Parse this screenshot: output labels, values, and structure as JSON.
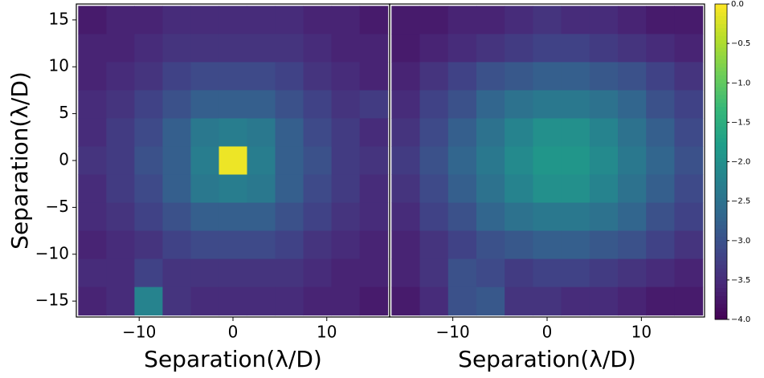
{
  "chart_data": [
    {
      "type": "heatmap",
      "xlabel": "Separation(λ/D)",
      "ylabel": "Separation(λ/D)",
      "xlim": [
        -16.7,
        16.7
      ],
      "ylim": [
        -16.7,
        16.7
      ],
      "xticks": [
        {
          "value": -10,
          "label": "−10"
        },
        0,
        10
      ],
      "yticks": [
        {
          "value": -15,
          "label": "−15"
        },
        {
          "value": -10,
          "label": "−10"
        },
        {
          "value": -5,
          "label": "−5"
        },
        0,
        5,
        10,
        15
      ],
      "x": [
        -15,
        -12,
        -9,
        -6,
        -3,
        0,
        3,
        6,
        9,
        12,
        15
      ],
      "y": [
        15,
        12,
        9,
        6,
        3,
        0,
        -3,
        -6,
        -9,
        -12,
        -15
      ],
      "values": [
        [
          -3.7,
          -3.6,
          -3.6,
          -3.5,
          -3.5,
          -3.5,
          -3.5,
          -3.5,
          -3.6,
          -3.6,
          -3.7
        ],
        [
          -3.6,
          -3.6,
          -3.5,
          -3.4,
          -3.4,
          -3.4,
          -3.4,
          -3.4,
          -3.5,
          -3.6,
          -3.6
        ],
        [
          -3.6,
          -3.5,
          -3.4,
          -3.2,
          -3.1,
          -3.1,
          -3.1,
          -3.2,
          -3.4,
          -3.5,
          -3.6
        ],
        [
          -3.5,
          -3.4,
          -3.2,
          -3.0,
          -2.8,
          -2.8,
          -2.8,
          -3.0,
          -3.2,
          -3.4,
          -3.3
        ],
        [
          -3.5,
          -3.3,
          -3.1,
          -2.8,
          -2.4,
          -2.3,
          -2.4,
          -2.8,
          -3.1,
          -3.3,
          -3.5
        ],
        [
          -3.4,
          -3.3,
          -3.0,
          -2.8,
          -2.3,
          -0.1,
          -2.3,
          -2.8,
          -3.0,
          -3.3,
          -3.4
        ],
        [
          -3.5,
          -3.3,
          -3.1,
          -2.8,
          -2.4,
          -2.3,
          -2.4,
          -2.8,
          -3.1,
          -3.3,
          -3.5
        ],
        [
          -3.5,
          -3.4,
          -3.2,
          -3.0,
          -2.8,
          -2.8,
          -2.8,
          -3.0,
          -3.2,
          -3.4,
          -3.5
        ],
        [
          -3.6,
          -3.5,
          -3.4,
          -3.2,
          -3.1,
          -3.1,
          -3.1,
          -3.2,
          -3.4,
          -3.5,
          -3.6
        ],
        [
          -3.5,
          -3.5,
          -3.2,
          -3.4,
          -3.4,
          -3.4,
          -3.4,
          -3.4,
          -3.5,
          -3.6,
          -3.6
        ],
        [
          -3.6,
          -3.5,
          -2.2,
          -3.4,
          -3.5,
          -3.5,
          -3.5,
          -3.5,
          -3.6,
          -3.6,
          -3.7
        ]
      ]
    },
    {
      "type": "heatmap",
      "xlabel": "Separation(λ/D)",
      "xlim": [
        -16.7,
        16.7
      ],
      "ylim": [
        -16.7,
        16.7
      ],
      "xticks": [
        {
          "value": -10,
          "label": "−10"
        },
        0,
        10
      ],
      "x": [
        -15,
        -12,
        -9,
        -6,
        -3,
        0,
        3,
        6,
        9,
        12,
        15
      ],
      "y": [
        15,
        12,
        9,
        6,
        3,
        0,
        -3,
        -6,
        -9,
        -12,
        -15
      ],
      "values": [
        [
          -3.7,
          -3.7,
          -3.6,
          -3.6,
          -3.5,
          -3.4,
          -3.5,
          -3.5,
          -3.6,
          -3.7,
          -3.7
        ],
        [
          -3.7,
          -3.6,
          -3.5,
          -3.4,
          -3.3,
          -3.2,
          -3.2,
          -3.3,
          -3.4,
          -3.5,
          -3.6
        ],
        [
          -3.6,
          -3.4,
          -3.2,
          -3.0,
          -2.9,
          -2.8,
          -2.8,
          -2.9,
          -3.0,
          -3.2,
          -3.4
        ],
        [
          -3.5,
          -3.2,
          -3.0,
          -2.7,
          -2.5,
          -2.4,
          -2.4,
          -2.5,
          -2.7,
          -3.0,
          -3.2
        ],
        [
          -3.4,
          -3.1,
          -2.8,
          -2.5,
          -2.2,
          -2.0,
          -2.0,
          -2.2,
          -2.5,
          -2.8,
          -3.1
        ],
        [
          -3.3,
          -3.0,
          -2.7,
          -2.4,
          -2.1,
          -1.9,
          -1.9,
          -2.1,
          -2.4,
          -2.7,
          -3.0
        ],
        [
          -3.4,
          -3.1,
          -2.8,
          -2.5,
          -2.2,
          -2.0,
          -2.0,
          -2.2,
          -2.5,
          -2.8,
          -3.1
        ],
        [
          -3.5,
          -3.2,
          -3.0,
          -2.7,
          -2.5,
          -2.4,
          -2.4,
          -2.5,
          -2.7,
          -3.0,
          -3.2
        ],
        [
          -3.6,
          -3.4,
          -3.2,
          -3.0,
          -2.9,
          -2.8,
          -2.8,
          -2.9,
          -3.0,
          -3.2,
          -3.4
        ],
        [
          -3.6,
          -3.4,
          -3.0,
          -3.1,
          -3.3,
          -3.2,
          -3.2,
          -3.3,
          -3.4,
          -3.5,
          -3.6
        ],
        [
          -3.7,
          -3.5,
          -3.0,
          -2.9,
          -3.4,
          -3.4,
          -3.5,
          -3.5,
          -3.6,
          -3.7,
          -3.7
        ]
      ]
    },
    {
      "type": "colorbar",
      "clim": [
        -4,
        0
      ],
      "colormap": [
        "#440154",
        "#482878",
        "#3e4989",
        "#31688e",
        "#26828e",
        "#1f9e89",
        "#35b779",
        "#6ece58",
        "#b5de2b",
        "#fde725"
      ],
      "ticks": [
        {
          "value": 0,
          "label": "0.0"
        },
        {
          "value": -0.5,
          "label": "−0.5"
        },
        {
          "value": -1,
          "label": "−1.0"
        },
        {
          "value": -1.5,
          "label": "−1.5"
        },
        {
          "value": -2,
          "label": "−2.0"
        },
        {
          "value": -2.5,
          "label": "−2.5"
        },
        {
          "value": -3,
          "label": "−3.0"
        },
        {
          "value": -3.5,
          "label": "−3.5"
        },
        {
          "value": -4,
          "label": "−4.0"
        }
      ]
    }
  ]
}
